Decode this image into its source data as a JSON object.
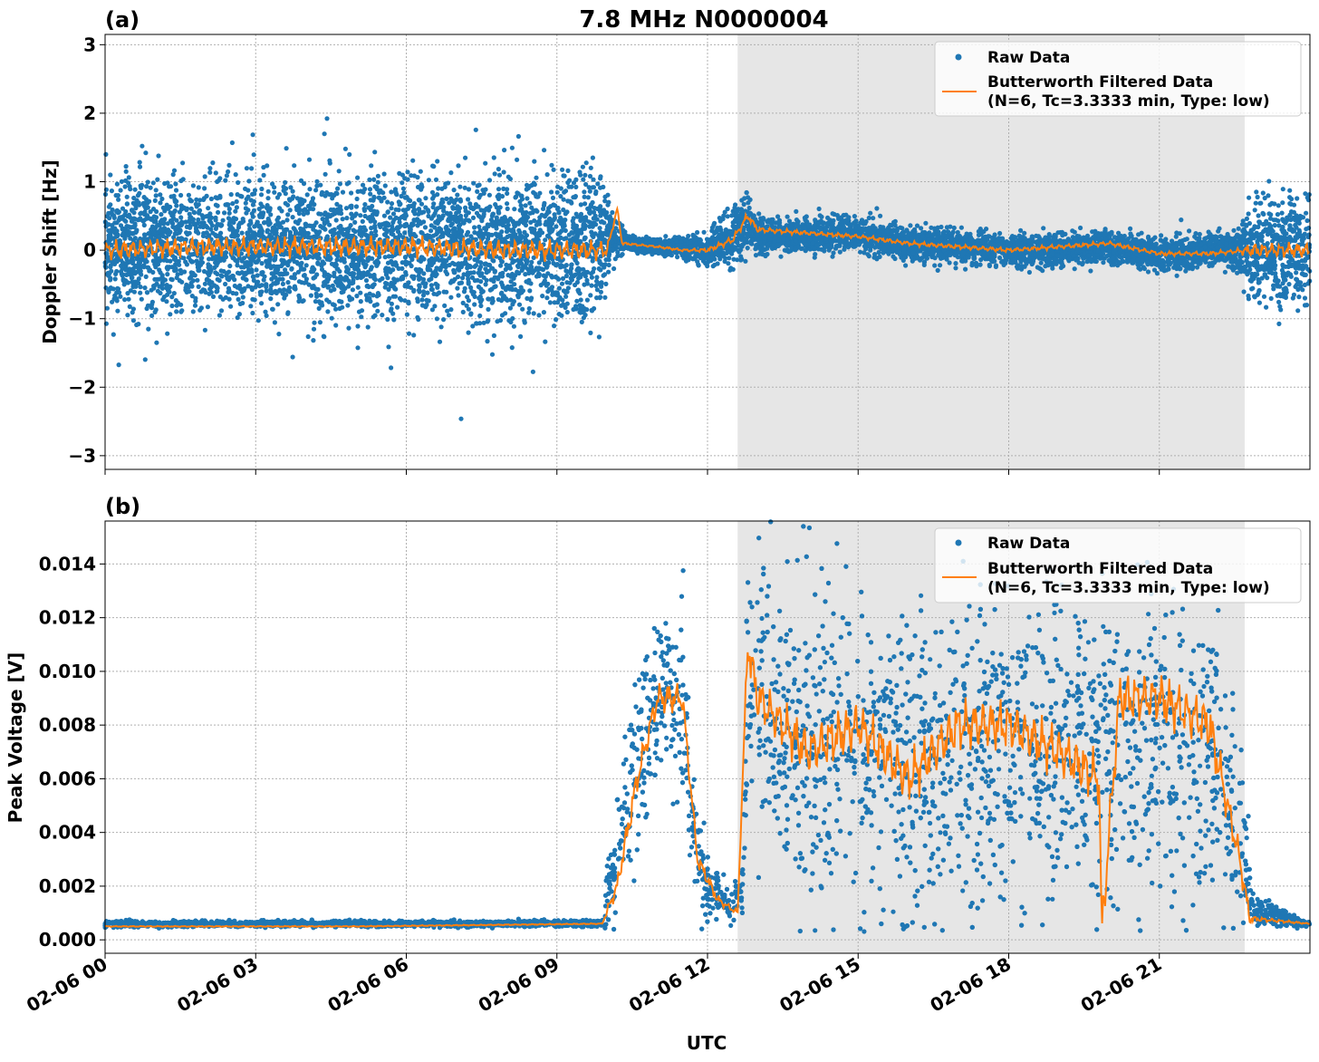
{
  "figure": {
    "title": "7.8 MHz N0000004",
    "xlabel": "UTC",
    "x_tick_labels": [
      "02-06 00",
      "02-06 03",
      "02-06 06",
      "02-06 09",
      "02-06 12",
      "02-06 15",
      "02-06 18",
      "02-06 21"
    ]
  },
  "colors": {
    "raw": "#1f77b4",
    "filtered": "#ff7f0e",
    "shade": "#e6e6e6",
    "grid": "#b0b0b0"
  },
  "legend": {
    "raw": "Raw Data",
    "filtered_line1": "Butterworth Filtered Data",
    "filtered_line2": "(N=6, Tc=3.3333 min, Type: low)"
  },
  "chart_data": [
    {
      "panel_label": "(a)",
      "type": "scatter",
      "title": "7.8 MHz N0000004",
      "xlabel": "",
      "ylabel": "Doppler Shift [Hz]",
      "x_unit": "hours UTC on 02-06",
      "xlim": [
        "02-06 00:00",
        "02-07 00:00"
      ],
      "ylim": [
        -3.2,
        3.15
      ],
      "y_ticks": [
        -3,
        -2,
        -1,
        0,
        1,
        2,
        3
      ],
      "y_tick_labels": [
        "−3",
        "−2",
        "−1",
        "0",
        "1",
        "2",
        "3"
      ],
      "shaded_region": [
        "02-06 12:36",
        "02-06 22:42"
      ],
      "grid": true,
      "legend_position": "upper right",
      "series": [
        {
          "name": "Raw Data",
          "kind": "scatter",
          "x_hours": [
            0,
            1,
            2,
            3,
            4,
            5,
            6,
            7,
            8,
            9,
            9.9,
            10.1,
            10.4,
            11,
            11.5,
            12,
            12.5,
            12.8,
            13,
            14,
            15,
            16,
            17,
            18,
            19,
            20,
            21,
            22,
            22.5,
            22.9,
            24
          ],
          "center": [
            0.05,
            0.05,
            0.05,
            0.05,
            0.05,
            0.05,
            0.05,
            0.05,
            0.0,
            0.0,
            0.05,
            0.2,
            0.1,
            0.05,
            0.05,
            0.0,
            0.2,
            0.4,
            0.2,
            0.2,
            0.25,
            0.1,
            0.05,
            0.0,
            0.0,
            0.05,
            -0.05,
            0.0,
            0.0,
            0.0,
            0.0
          ],
          "spread": [
            0.9,
            0.9,
            0.9,
            0.9,
            0.95,
            0.95,
            0.95,
            0.95,
            0.95,
            0.95,
            0.9,
            0.3,
            0.1,
            0.1,
            0.12,
            0.2,
            0.35,
            0.35,
            0.25,
            0.2,
            0.2,
            0.2,
            0.2,
            0.2,
            0.2,
            0.2,
            0.2,
            0.2,
            0.2,
            0.7,
            0.7
          ]
        },
        {
          "name": "Butterworth Filtered Data (N=6, Tc=3.3333 min, Type: low)",
          "kind": "line",
          "x_hours": [
            0,
            2,
            4,
            6,
            8,
            10,
            10.2,
            10.3,
            11,
            11.5,
            12,
            12.5,
            12.8,
            13,
            14,
            15,
            16,
            17,
            18,
            19,
            20,
            21,
            22,
            22.8,
            24
          ],
          "values": [
            0.0,
            0.05,
            0.05,
            0.05,
            0.0,
            0.0,
            0.6,
            0.1,
            0.05,
            0.0,
            0.0,
            0.15,
            0.5,
            0.3,
            0.25,
            0.2,
            0.1,
            0.05,
            0.0,
            0.05,
            0.1,
            -0.05,
            -0.05,
            0.0,
            0.0
          ]
        }
      ]
    },
    {
      "panel_label": "(b)",
      "type": "scatter",
      "xlabel": "UTC",
      "ylabel": "Peak Voltage [V]",
      "x_unit": "hours UTC on 02-06",
      "xlim": [
        "02-06 00:00",
        "02-07 00:00"
      ],
      "ylim": [
        -0.0005,
        0.0156
      ],
      "y_ticks": [
        0,
        0.002,
        0.004,
        0.006,
        0.008,
        0.01,
        0.012,
        0.014
      ],
      "y_tick_labels": [
        "0.000",
        "0.002",
        "0.004",
        "0.006",
        "0.008",
        "0.010",
        "0.012",
        "0.014"
      ],
      "shaded_region": [
        "02-06 12:36",
        "02-06 22:42"
      ],
      "grid": true,
      "legend_position": "upper right",
      "series": [
        {
          "name": "Raw Data",
          "kind": "scatter",
          "x_hours": [
            0,
            5,
            9.9,
            10.0,
            10.5,
            11.0,
            11.5,
            11.7,
            12.0,
            12.5,
            12.7,
            12.8,
            13.0,
            14,
            15,
            16,
            17,
            18,
            19,
            20,
            21,
            22,
            22.6,
            22.9,
            24
          ],
          "center": [
            0.0006,
            0.0006,
            0.0006,
            0.0015,
            0.006,
            0.009,
            0.009,
            0.004,
            0.002,
            0.0012,
            0.002,
            0.009,
            0.009,
            0.007,
            0.007,
            0.007,
            0.007,
            0.007,
            0.007,
            0.007,
            0.007,
            0.007,
            0.004,
            0.001,
            0.0006
          ],
          "spread": [
            0.0001,
            0.0001,
            0.0001,
            0.001,
            0.003,
            0.003,
            0.003,
            0.002,
            0.0012,
            0.0005,
            0.001,
            0.004,
            0.0045,
            0.005,
            0.005,
            0.005,
            0.005,
            0.005,
            0.005,
            0.005,
            0.005,
            0.005,
            0.003,
            0.0005,
            0.0001
          ]
        },
        {
          "name": "Butterworth Filtered Data (N=6, Tc=3.3333 min, Type: low)",
          "kind": "line",
          "x_hours": [
            0,
            5,
            9.9,
            10.2,
            10.6,
            11.0,
            11.5,
            11.8,
            12.2,
            12.6,
            12.8,
            13.0,
            14,
            15,
            16,
            17,
            18,
            19,
            19.8,
            19.85,
            20.2,
            21,
            22,
            22.6,
            22.8,
            24
          ],
          "values": [
            0.0005,
            0.0005,
            0.0006,
            0.002,
            0.006,
            0.009,
            0.009,
            0.003,
            0.0015,
            0.001,
            0.011,
            0.009,
            0.007,
            0.008,
            0.006,
            0.008,
            0.008,
            0.007,
            0.006,
            0.0002,
            0.009,
            0.009,
            0.008,
            0.003,
            0.0008,
            0.0006
          ]
        }
      ]
    }
  ]
}
